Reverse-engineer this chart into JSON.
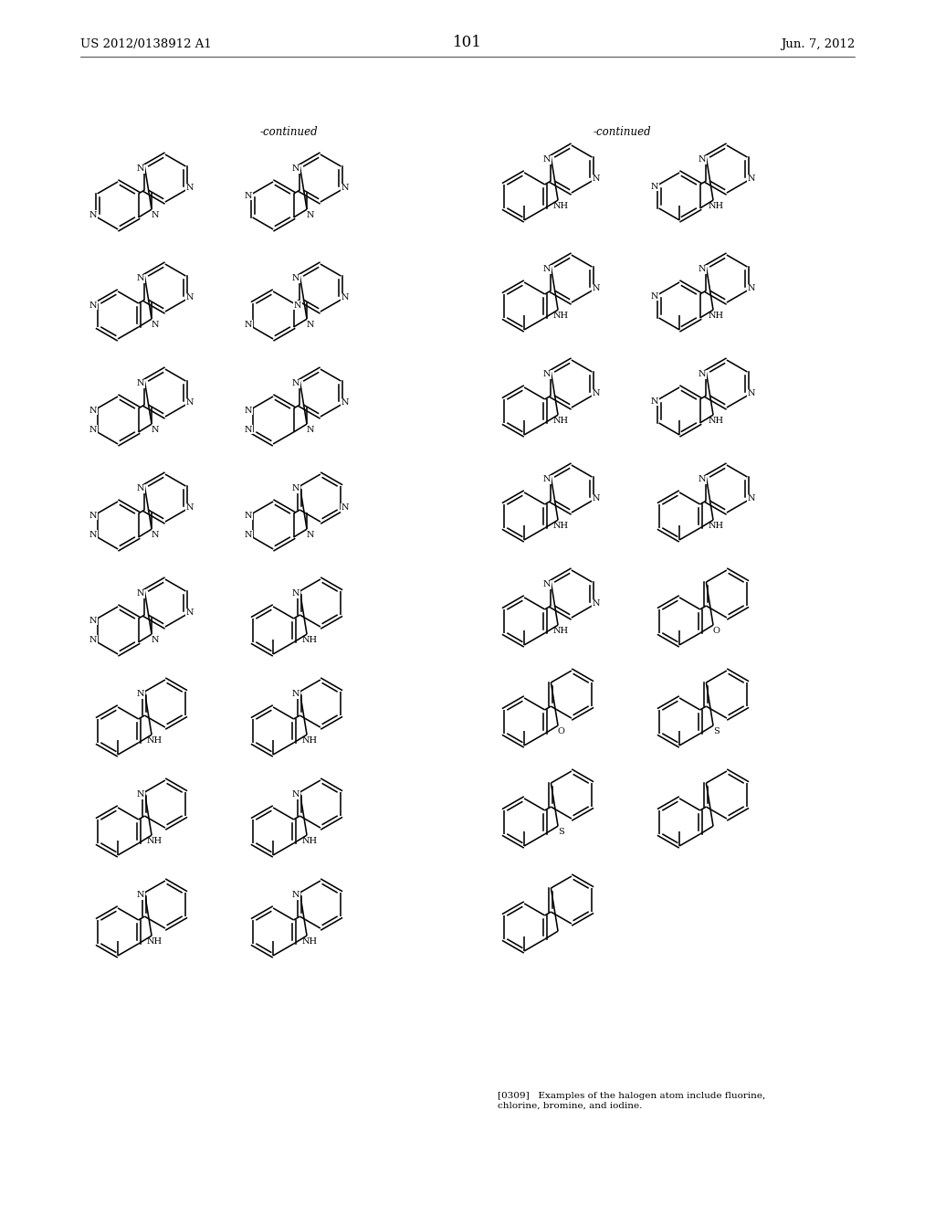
{
  "page_number": "101",
  "patent_number": "US 2012/0138912 A1",
  "patent_date": "Jun. 7, 2012",
  "continued_label": "-continued",
  "background_color": "#ffffff",
  "text_color": "#000000",
  "figsize": [
    10.24,
    13.2
  ],
  "dpi": 100,
  "footer_text": "[0309]   Examples of the halogen atom include fluorine,\nchlorine, bromine, and iodine."
}
